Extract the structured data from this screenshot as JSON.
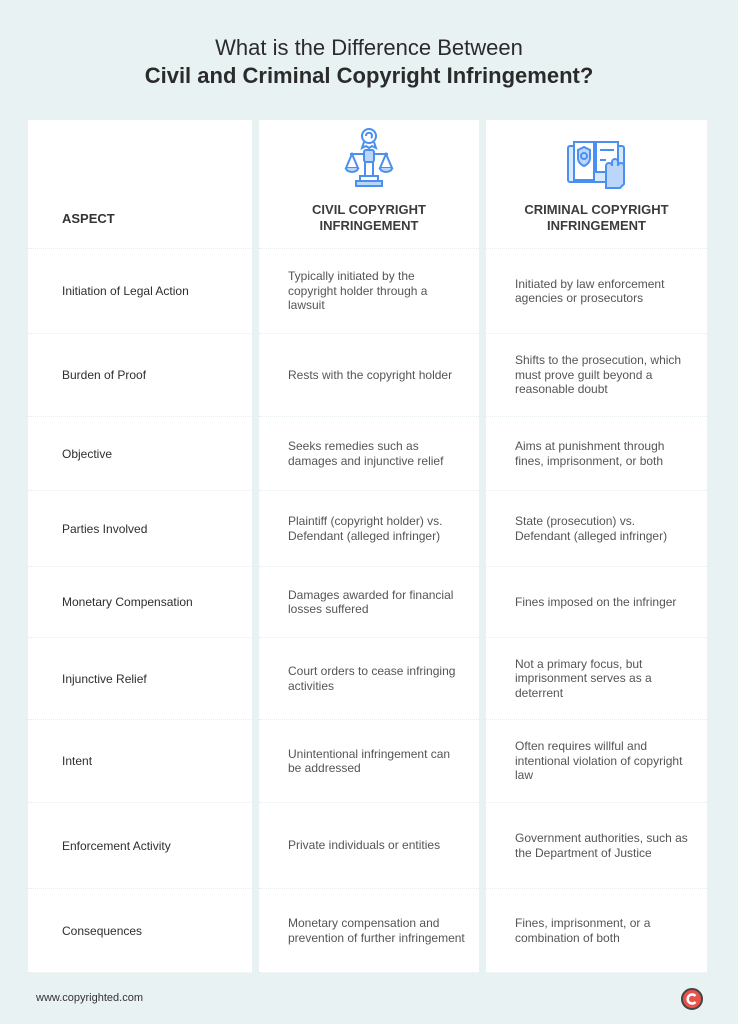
{
  "title": {
    "line1": "What is the Difference Between",
    "line2": "Civil and Criminal Copyright Infringement?"
  },
  "headers": {
    "aspect": "ASPECT",
    "civil": "CIVIL COPYRIGHT INFRINGEMENT",
    "criminal": "CRIMINAL COPYRIGHT INFRINGEMENT"
  },
  "icons": {
    "civil": "scales-of-justice-icon",
    "criminal": "law-book-hand-icon",
    "accent": "#4a90f0"
  },
  "rows": [
    {
      "aspect": "Initiation of Legal Action",
      "civil": "Typically initiated by the copyright holder through a lawsuit",
      "criminal": "Initiated by law enforcement agencies or prosecutors"
    },
    {
      "aspect": "Burden of Proof",
      "civil": "Rests with the copyright holder",
      "criminal": "Shifts to the prosecution, which must prove guilt beyond a reasonable doubt"
    },
    {
      "aspect": "Objective",
      "civil": "Seeks remedies such as damages and injunctive relief",
      "criminal": "Aims at punishment through fines, imprisonment, or both"
    },
    {
      "aspect": "Parties Involved",
      "civil": "Plaintiff (copyright holder) vs. Defendant (alleged infringer)",
      "criminal": "State (prosecution) vs. Defendant (alleged infringer)"
    },
    {
      "aspect": "Monetary Compensation",
      "civil": "Damages awarded for financial losses suffered",
      "criminal": "Fines imposed on the infringer"
    },
    {
      "aspect": "Injunctive Relief",
      "civil": "Court orders to cease infringing activities",
      "criminal": "Not a primary focus, but imprisonment serves as a deterrent"
    },
    {
      "aspect": "Intent",
      "civil": "Unintentional infringement can be addressed",
      "criminal": "Often requires willful and intentional violation of copyright law"
    },
    {
      "aspect": "Enforcement Activity",
      "civil": "Private individuals or entities",
      "criminal": "Government authorities, such as the Department of Justice"
    },
    {
      "aspect": "Consequences",
      "civil": "Monetary compensation and prevention of further infringement",
      "criminal": "Fines, imprisonment, or a combination of both"
    }
  ],
  "footer": {
    "url": "www.copyrighted.com",
    "logo": "copyright-c-logo",
    "logo_color": "#e8524a"
  }
}
